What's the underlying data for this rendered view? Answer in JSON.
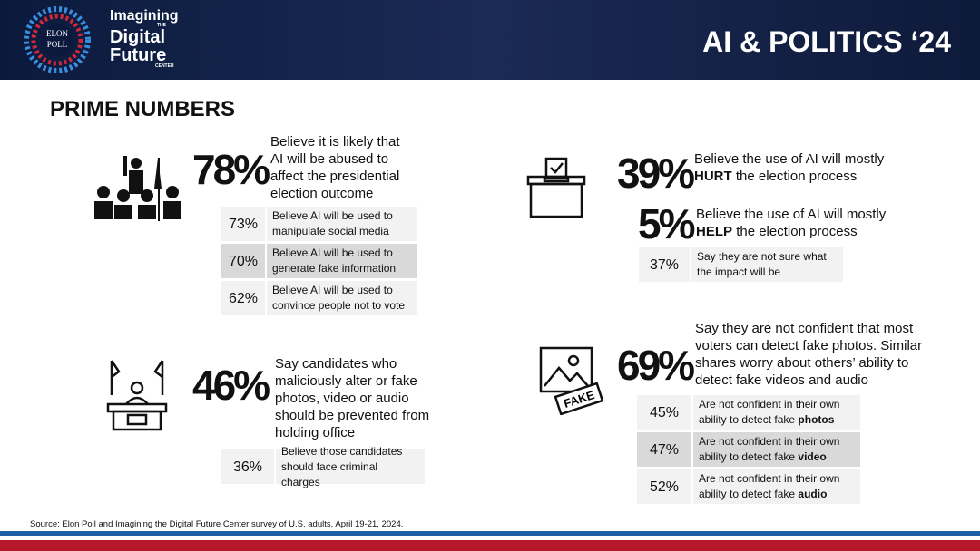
{
  "header": {
    "logo": {
      "top": "ELON",
      "bottom": "POLL"
    },
    "brand": {
      "line1": "Imagining",
      "small1": "THE",
      "line2": "Digital",
      "line3": "Future",
      "small2": "CENTER"
    },
    "title": "AI & POLITICS ‘24"
  },
  "section_title": "PRIME NUMBERS",
  "stats": [
    {
      "value": "78%",
      "text": "Believe it is likely that AI will be abused to affect the presidential election outcome",
      "details": [
        {
          "value": "73%",
          "text": "Believe AI will be used to manipulate social media"
        },
        {
          "value": "70%",
          "text": "Believe AI will be used to generate fake information"
        },
        {
          "value": "62%",
          "text": "Believe AI will be used to convince people not to vote"
        }
      ]
    },
    {
      "value": "46%",
      "text": "Say candidates who maliciously alter or fake photos, video or audio should be prevented from holding office",
      "details": [
        {
          "value": "36%",
          "text": "Believe those candidates should face criminal charges"
        }
      ]
    },
    {
      "value": "39%",
      "text": "Believe the use of AI will mostly",
      "emphasis": "HURT",
      "text_after": "the election process"
    },
    {
      "value": "5%",
      "text": "Believe the use of AI will mostly",
      "emphasis": "HELP",
      "text_after": "the election process",
      "details": [
        {
          "value": "37%",
          "text": "Say they are not sure what the impact will be"
        }
      ]
    },
    {
      "value": "69%",
      "text": "Say they are not confident that most voters can detect fake photos. Similar shares worry about others’ ability to detect fake videos and audio",
      "icon_label": "FAKE",
      "details": [
        {
          "value": "45%",
          "text": "Are not confident in their own ability to detect fake",
          "emphasis": "photos"
        },
        {
          "value": "47%",
          "text": "Are not confident in their own ability to detect fake",
          "emphasis": "video"
        },
        {
          "value": "52%",
          "text": "Are not confident in their own ability to detect fake",
          "emphasis": "audio"
        }
      ]
    }
  ],
  "source": "Source: Elon Poll and Imagining the Digital Future Center survey of U.S. adults, April 19-21, 2024."
}
